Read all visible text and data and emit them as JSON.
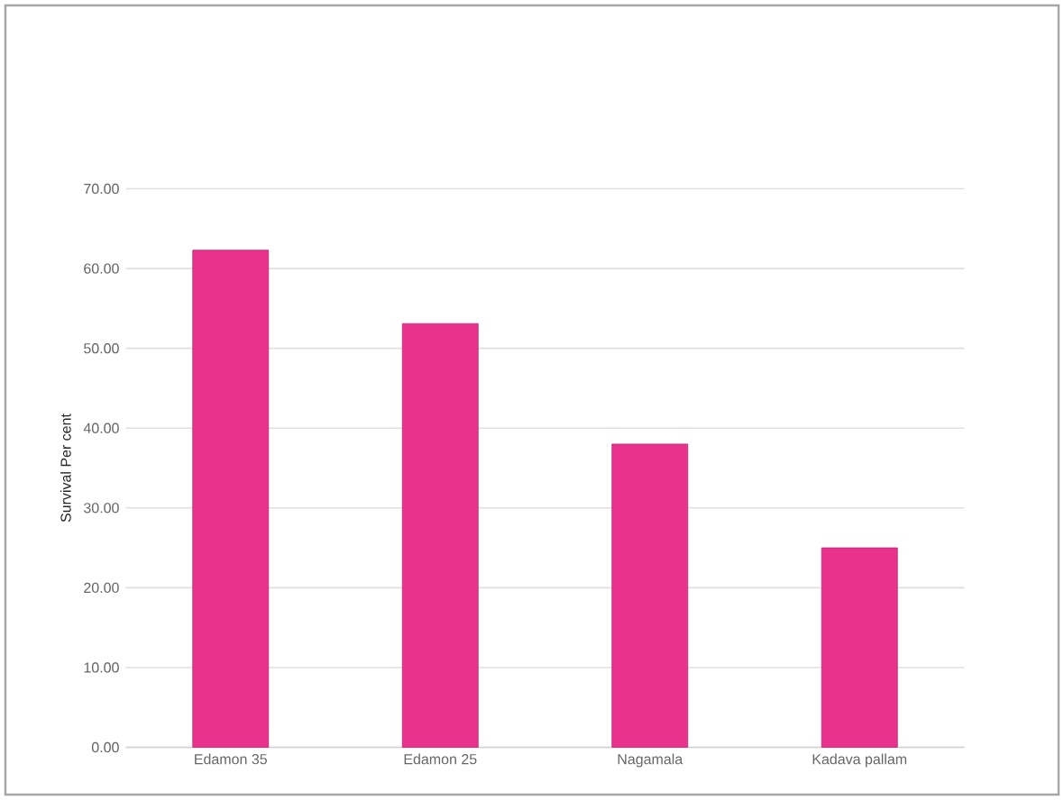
{
  "chart_data": {
    "type": "bar",
    "ylabel": "Survival Per cent",
    "categories": [
      "Edamon 35",
      "Edamon 25",
      "Nagamala",
      "Kadava pallam"
    ],
    "values": [
      62.3,
      53.1,
      38.0,
      25.0
    ],
    "color": "#e8328c",
    "ylim": [
      0,
      70
    ],
    "yticks": [
      {
        "value": 0,
        "label": "0.00"
      },
      {
        "value": 10,
        "label": "10.00"
      },
      {
        "value": 20,
        "label": "20.00"
      },
      {
        "value": 30,
        "label": "30.00"
      },
      {
        "value": 40,
        "label": "40.00"
      },
      {
        "value": 50,
        "label": "50.00"
      },
      {
        "value": 60,
        "label": "60.00"
      },
      {
        "value": 70,
        "label": "70.00"
      }
    ],
    "grid": "y"
  }
}
